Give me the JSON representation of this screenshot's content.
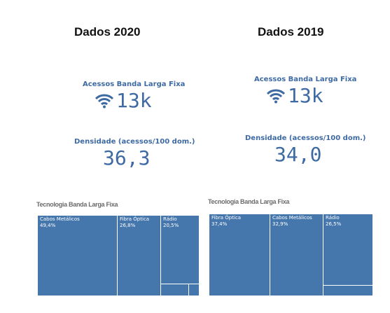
{
  "panels": [
    {
      "title": "Dados 2020",
      "kpi_accessos": {
        "label": "Acessos Banda Larga Fixa",
        "value": "13k",
        "icon": "wifi-icon"
      },
      "kpi_densidade": {
        "label": "Densidade (acessos/100 dom.)",
        "value": "36,3"
      },
      "treemap": {
        "title": "Tecnologia Banda Larga Fixa",
        "cells": [
          {
            "name": "Cabos Metálicos",
            "pct": "49,4%",
            "share": 0.494
          },
          {
            "name": "Fibra Óptica",
            "pct": "26,8%",
            "share": 0.268
          },
          {
            "name": "Rádio",
            "pct": "20,5%",
            "share": 0.205
          }
        ]
      }
    },
    {
      "title": "Dados 2019",
      "kpi_accessos": {
        "label": "Acessos Banda Larga Fixa",
        "value": "13k",
        "icon": "wifi-icon"
      },
      "kpi_densidade": {
        "label": "Densidade (acessos/100 dom.)",
        "value": "34,0"
      },
      "treemap": {
        "title": "Tecnologia Banda Larga Fixa",
        "cells": [
          {
            "name": "Fibra Óptica",
            "pct": "37,4%",
            "share": 0.374
          },
          {
            "name": "Cabos Metálicos",
            "pct": "32,9%",
            "share": 0.329
          },
          {
            "name": "Rádio",
            "pct": "26,5%",
            "share": 0.265
          }
        ]
      }
    }
  ],
  "colors": {
    "accent": "#3e6aa3",
    "tile": "#4677ac"
  }
}
